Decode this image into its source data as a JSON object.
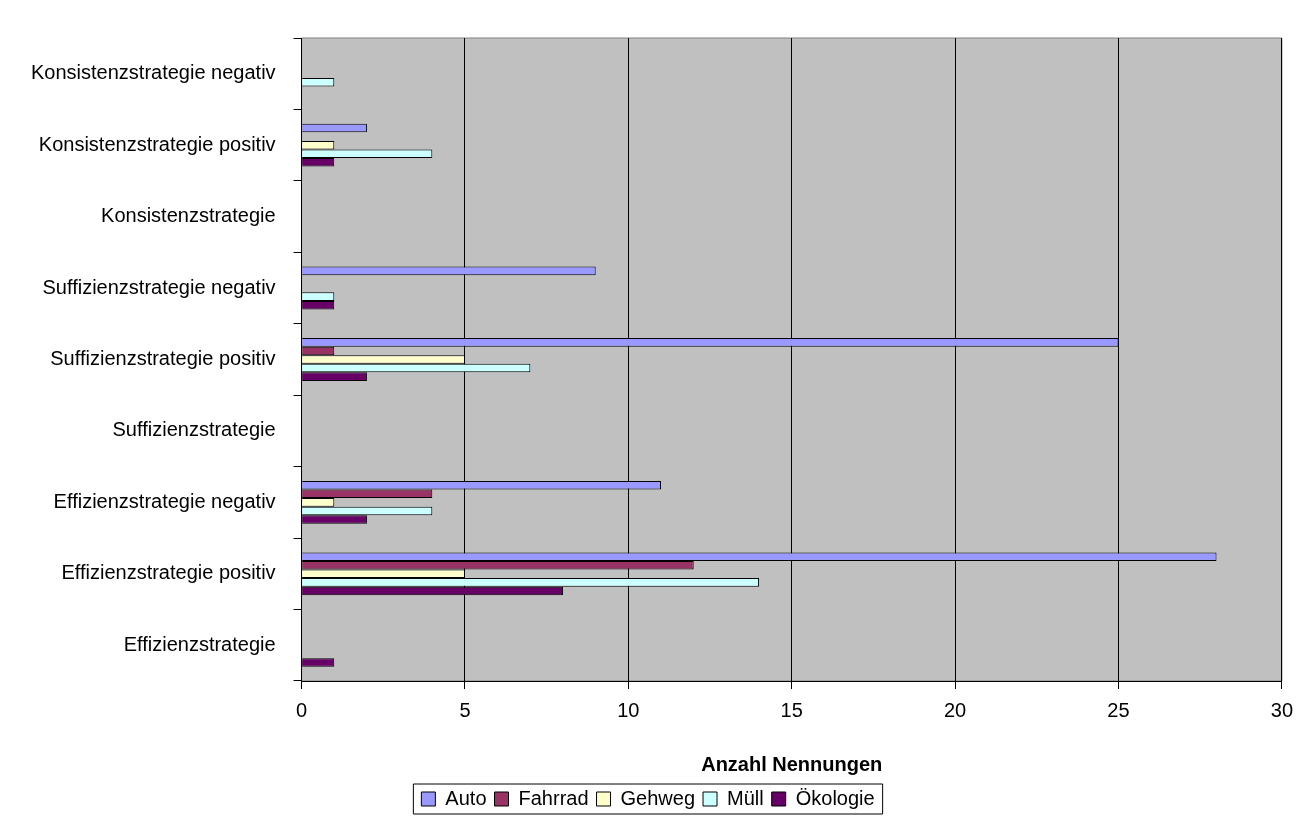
{
  "chart_data": {
    "type": "bar",
    "orientation": "horizontal",
    "xlabel": "Anzahl Nennungen",
    "categories": [
      "Konsistenzstrategie negativ",
      "Konsistenzstrategie positiv",
      "Konsistenzstrategie",
      "Suffizienzstrategie negativ",
      "Suffizienzstrategie positiv",
      "Suffizienzstrategie",
      "Effizienzstrategie negativ",
      "Effizienzstrategie positiv",
      "Effizienzstrategie"
    ],
    "series": [
      {
        "name": "Auto",
        "color": "#9999ff",
        "values": [
          0,
          2,
          0,
          9,
          25,
          0,
          11,
          28,
          0
        ]
      },
      {
        "name": "Fahrrad",
        "color": "#993366",
        "values": [
          0,
          0,
          0,
          0,
          1,
          0,
          4,
          12,
          0
        ]
      },
      {
        "name": "Gehweg",
        "color": "#ffffcc",
        "values": [
          0,
          1,
          0,
          0,
          5,
          0,
          1,
          5,
          0
        ]
      },
      {
        "name": "Müll",
        "color": "#ccffff",
        "values": [
          1,
          4,
          0,
          1,
          7,
          0,
          4,
          14,
          0
        ]
      },
      {
        "name": "Ökologie",
        "color": "#660066",
        "values": [
          0,
          1,
          0,
          1,
          2,
          0,
          2,
          8,
          1
        ]
      }
    ],
    "xlim": [
      0,
      30
    ],
    "xticks": [
      0,
      5,
      10,
      15,
      20,
      25,
      30
    ],
    "grid": "x",
    "legend": "bottom"
  }
}
